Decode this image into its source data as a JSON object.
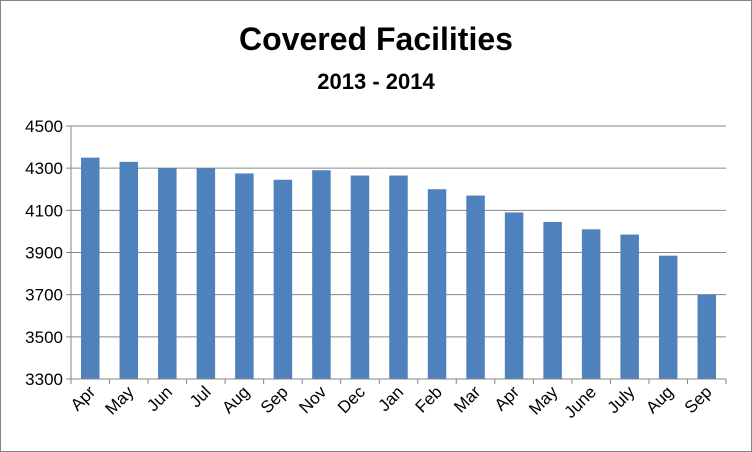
{
  "chart_data": {
    "type": "bar",
    "title": "Covered Facilities",
    "subtitle": "2013 - 2014",
    "categories": [
      "Apr",
      "May",
      "Jun",
      "Jul",
      "Aug",
      "Sep",
      "Nov",
      "Dec",
      "Jan",
      "Feb",
      "Mar",
      "Apr",
      "May",
      "June",
      "July",
      "Aug",
      "Sep"
    ],
    "values": [
      4350,
      4330,
      4300,
      4300,
      4275,
      4245,
      4290,
      4265,
      4265,
      4200,
      4170,
      4090,
      4045,
      4010,
      3985,
      3885,
      3700
    ],
    "ylim": [
      3300,
      4500
    ],
    "yticks": [
      3300,
      3500,
      3700,
      3900,
      4100,
      4300,
      4500
    ],
    "grid": true,
    "legend": "none",
    "colors": {
      "bar": "#4F81BD",
      "grid": "#868686",
      "axis": "#868686"
    }
  }
}
